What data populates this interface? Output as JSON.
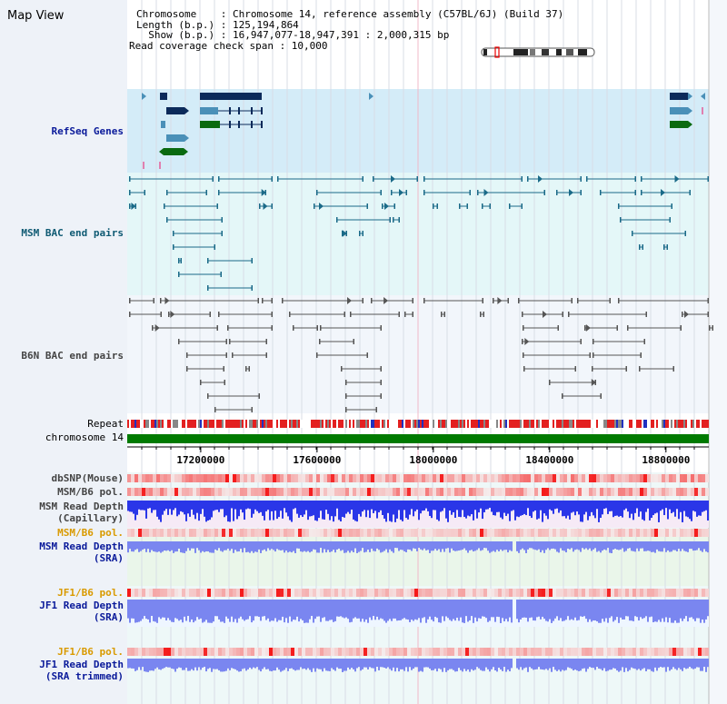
{
  "title": "Map View",
  "info": {
    "chromosome_label": "Chromosome    : Chromosome 14, reference assembly (C57BL/6J) (Build 37)",
    "length_label": "Length (b.p.) : 125,194,864",
    "show_label": "  Show (b.p.) : 16,947,077-18,947,391 : 2,000,315 bp",
    "coverage_label": "Read coverage check span : 10,000"
  },
  "tracks": {
    "refseq": "RefSeq Genes",
    "msm_bac": "MSM BAC end pairs",
    "b6n_bac": "B6N BAC end pairs",
    "repeat": "Repeat",
    "chromosome": "chromosome 14",
    "dbsnp": "dbSNP(Mouse)",
    "msm_b6_pol_1": "MSM/B6 pol.",
    "msm_read_depth_cap_1": "MSM Read Depth",
    "msm_read_depth_cap_2": "(Capillary)",
    "msm_b6_pol_2": "MSM/B6 pol.",
    "msm_read_depth_sra_1": "MSM Read Depth",
    "msm_read_depth_sra_2": "(SRA)",
    "jf1_b6_pol_1": "JF1/B6 pol.",
    "jf1_read_depth_sra_1": "JF1 Read Depth",
    "jf1_read_depth_sra_2": "(SRA)",
    "jf1_b6_pol_2": "JF1/B6 pol.",
    "jf1_read_depth_trim_1": "JF1 Read Depth",
    "jf1_read_depth_trim_2": "(SRA trimmed)"
  },
  "axis": {
    "ticks": [
      "17200000",
      "17600000",
      "18000000",
      "18400000",
      "18800000"
    ]
  },
  "colors": {
    "refseq_bg": "#d4ecf8",
    "bac_bg": "#e4f7f8",
    "dark_navy": "#0b2a5a",
    "steel": "#4a90b8",
    "green": "#0a6a10",
    "repeat_red": "#e32020",
    "chrom_green": "#007a00",
    "depth_blue": "#2a36e8",
    "depth_light": "#7a86f0"
  }
}
